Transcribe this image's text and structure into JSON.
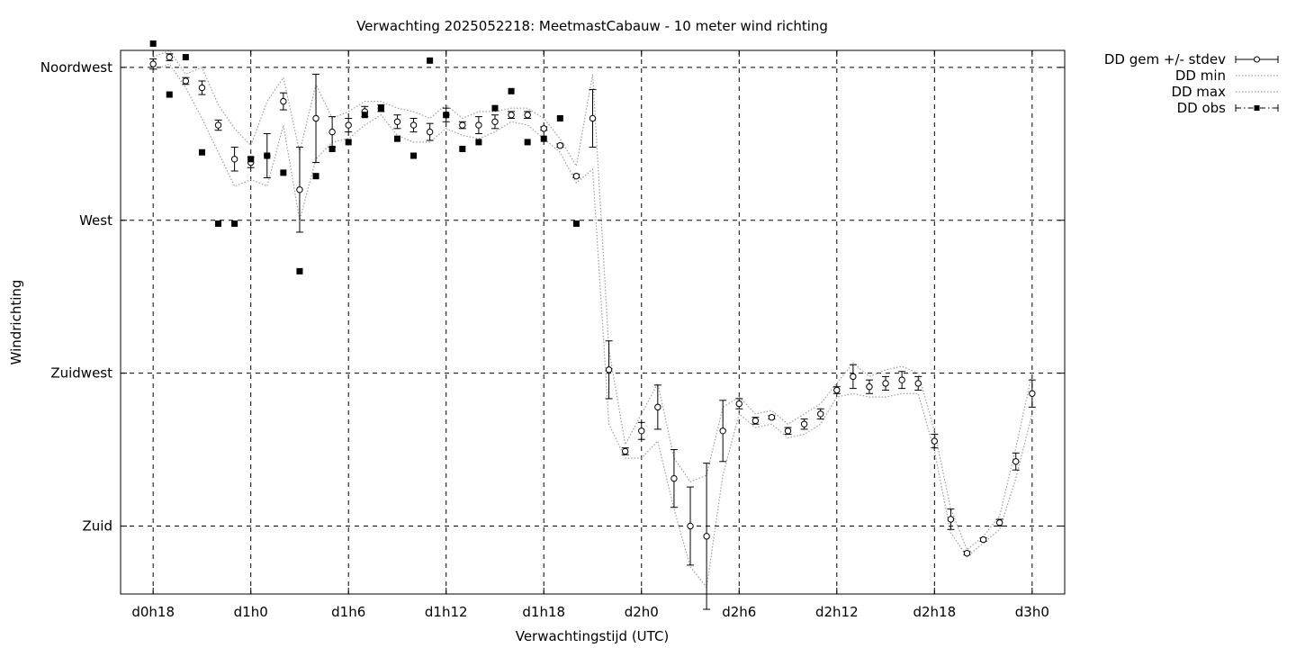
{
  "chart_data": {
    "type": "scatter",
    "title": "Verwachting 2025052218: MeetmastCabauw - 10 meter wind richting",
    "xlabel": "Verwachtingstijd (UTC)",
    "ylabel": "Windrichting",
    "xlim": [
      -2,
      56
    ],
    "ylim": [
      160,
      320
    ],
    "grid": true,
    "legend_position": "top-right outside",
    "x_ticks": [
      {
        "x": 0,
        "label": "d0h18"
      },
      {
        "x": 6,
        "label": "d1h0"
      },
      {
        "x": 12,
        "label": "d1h6"
      },
      {
        "x": 18,
        "label": "d1h12"
      },
      {
        "x": 24,
        "label": "d1h18"
      },
      {
        "x": 30,
        "label": "d2h0"
      },
      {
        "x": 36,
        "label": "d2h6"
      },
      {
        "x": 42,
        "label": "d2h12"
      },
      {
        "x": 48,
        "label": "d2h18"
      },
      {
        "x": 54,
        "label": "d3h0"
      }
    ],
    "y_ticks": [
      {
        "y": 180,
        "label": "Zuid"
      },
      {
        "y": 225,
        "label": "Zuidwest"
      },
      {
        "y": 270,
        "label": "West"
      },
      {
        "y": 315,
        "label": "Noordwest"
      }
    ],
    "series": [
      {
        "name": "DD gem +/- stdev",
        "x": [
          0,
          1,
          2,
          3,
          4,
          5,
          6,
          7,
          8,
          9,
          10,
          11,
          12,
          13,
          14,
          15,
          16,
          17,
          18,
          19,
          20,
          21,
          22,
          23,
          24,
          25,
          26,
          27,
          28,
          29,
          30,
          31,
          32,
          33,
          34,
          35,
          36,
          37,
          38,
          39,
          40,
          41,
          42,
          43,
          44,
          45,
          46,
          47,
          48,
          49,
          50,
          51,
          52,
          53,
          54
        ],
        "y": [
          316,
          318,
          311,
          309,
          298,
          288,
          287,
          289,
          305,
          279,
          300,
          296,
          298,
          302,
          303,
          299,
          298,
          296,
          301,
          298,
          298,
          299,
          301,
          301,
          297,
          292,
          283,
          300,
          226,
          202,
          208,
          215,
          194,
          180,
          177,
          208,
          216,
          211,
          212,
          208,
          210,
          213,
          220,
          224,
          221,
          222,
          223,
          222,
          205,
          182,
          172,
          176,
          181,
          199,
          219
        ],
        "yerr": [
          1.5,
          1,
          1,
          2,
          1.5,
          3.5,
          1.5,
          6.5,
          2.5,
          12.5,
          13,
          4.5,
          2,
          1.5,
          1,
          2,
          2,
          2.5,
          2,
          1,
          2.5,
          2,
          1,
          1,
          0.5,
          0.5,
          0.5,
          8.5,
          8.5,
          1,
          2.5,
          6.5,
          8.5,
          11.5,
          21.5,
          9,
          1.5,
          1,
          0.5,
          1,
          1.5,
          1.5,
          1,
          3.5,
          2,
          2,
          2.5,
          2,
          2,
          3,
          0.5,
          0.5,
          1,
          2.5,
          4
        ],
        "color": "#000000"
      },
      {
        "name": "DD min",
        "x": [
          0,
          1,
          2,
          3,
          4,
          5,
          6,
          7,
          8,
          9,
          10,
          11,
          12,
          13,
          14,
          15,
          16,
          17,
          18,
          19,
          20,
          21,
          22,
          23,
          24,
          25,
          26,
          27,
          28,
          29,
          30,
          31,
          32,
          33,
          34,
          35,
          36,
          37,
          38,
          39,
          40,
          41,
          42,
          43,
          44,
          45,
          46,
          47,
          48,
          49,
          50,
          51,
          52,
          53,
          54
        ],
        "y": [
          314,
          316,
          309,
          300,
          290,
          280,
          282,
          280,
          298,
          270,
          288,
          293,
          294,
          298,
          301,
          295,
          293,
          293,
          297,
          295,
          294,
          296,
          299,
          298,
          294,
          290,
          281,
          285,
          210,
          200,
          200,
          205,
          185,
          168,
          162,
          195,
          213,
          209,
          210,
          206,
          207,
          210,
          218,
          219,
          218,
          218,
          219,
          219,
          202,
          178,
          171,
          175,
          179,
          194,
          213
        ],
        "color": "#9e9e9e"
      },
      {
        "name": "DD max",
        "x": [
          0,
          1,
          2,
          3,
          4,
          5,
          6,
          7,
          8,
          9,
          10,
          11,
          12,
          13,
          14,
          15,
          16,
          17,
          18,
          19,
          20,
          21,
          22,
          23,
          24,
          25,
          26,
          27,
          28,
          29,
          30,
          31,
          32,
          33,
          34,
          35,
          36,
          37,
          38,
          39,
          40,
          41,
          42,
          43,
          44,
          45,
          46,
          47,
          48,
          49,
          50,
          51,
          52,
          53,
          54
        ],
        "y": [
          318,
          320,
          313,
          315,
          304,
          297,
          292,
          305,
          312,
          290,
          310,
          300,
          302,
          305,
          305,
          303,
          302,
          300,
          304,
          300,
          302,
          302,
          303,
          303,
          300,
          294,
          286,
          313,
          232,
          204,
          213,
          222,
          200,
          193,
          195,
          215,
          218,
          213,
          214,
          210,
          213,
          216,
          222,
          228,
          224,
          226,
          227,
          225,
          208,
          185,
          173,
          177,
          183,
          203,
          225
        ],
        "color": "#9e9e9e"
      },
      {
        "name": "DD obs",
        "x": [
          0,
          1,
          2,
          3,
          4,
          5,
          6,
          7,
          8,
          9,
          10,
          11,
          12,
          13,
          14,
          15,
          16,
          17,
          18,
          19,
          20,
          21,
          22,
          23,
          24,
          25,
          26
        ],
        "y": [
          322,
          307,
          318,
          290,
          269,
          269,
          288,
          289,
          284,
          255,
          283,
          291,
          293,
          301,
          303,
          294,
          289,
          317,
          301,
          291,
          293,
          303,
          308,
          293,
          294,
          300,
          269
        ],
        "color": "#000000"
      }
    ]
  }
}
